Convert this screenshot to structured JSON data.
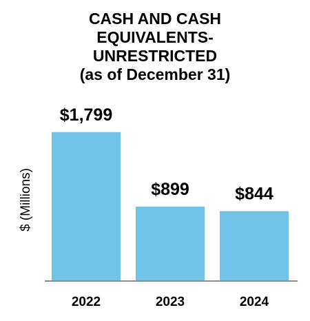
{
  "chart_data": {
    "type": "bar",
    "title_lines": [
      "CASH AND CASH",
      "EQUIVALENTS-",
      "UNRESTRICTED",
      "(as of December 31)"
    ],
    "ylabel": "$ (Millions)",
    "xlabel": "",
    "categories": [
      "2022",
      "2023",
      "2024"
    ],
    "values": [
      1799,
      899,
      844
    ],
    "data_labels": [
      "$1,799",
      "$899",
      "$844"
    ],
    "ylim": [
      0,
      1980
    ],
    "grid": false,
    "legend": "none",
    "colors": {
      "bar": "#73C2E8",
      "axis": "#8C8C8C",
      "text": "#000000"
    }
  }
}
